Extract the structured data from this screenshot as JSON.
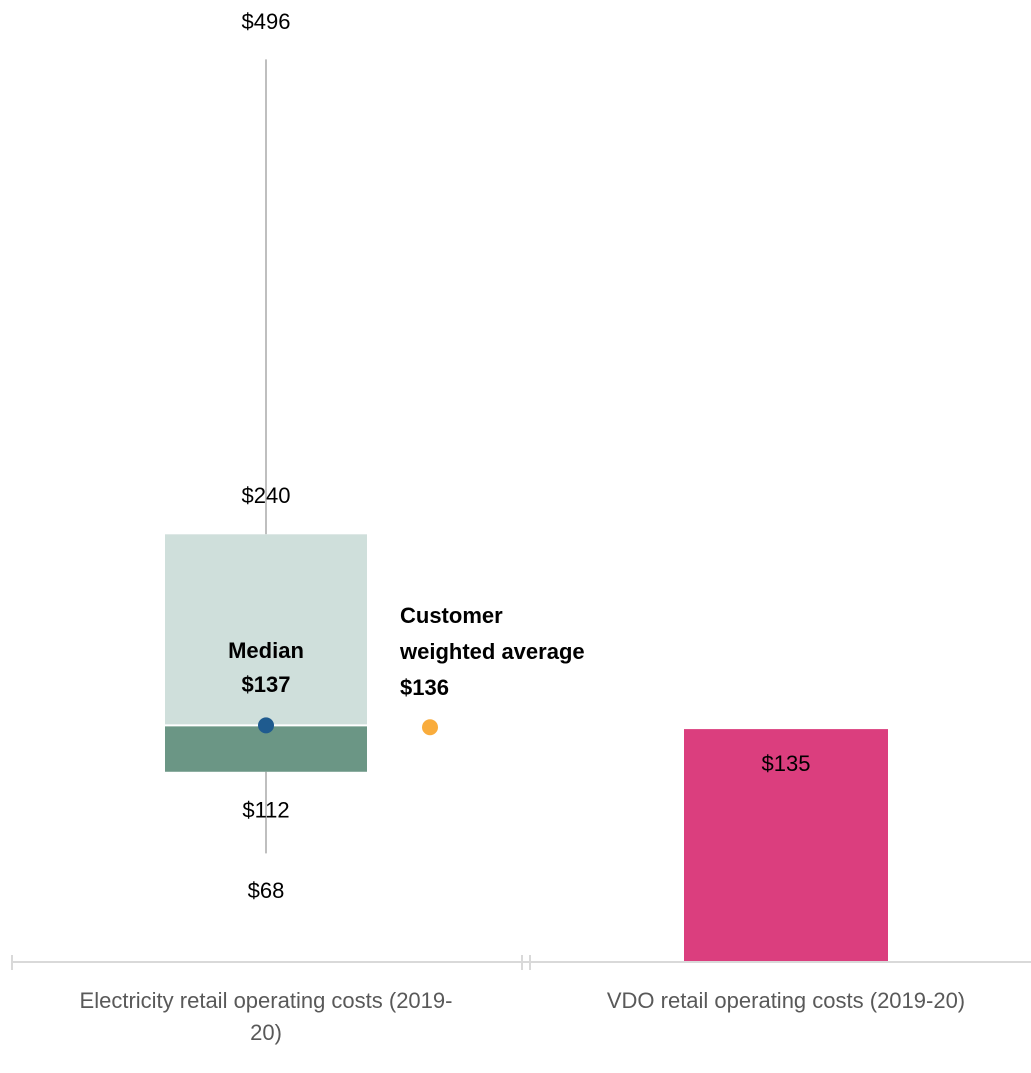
{
  "chart_data": {
    "type": "box",
    "categories": [
      "Electricity retail operating costs (2019-20)",
      "VDO retail operating costs (2019-20)"
    ],
    "ylim": [
      10,
      528
    ],
    "box": {
      "min": 68,
      "q1": 112,
      "median": 137,
      "q3": 240,
      "max": 496,
      "value_labels": {
        "min": "$68",
        "q1": "$112",
        "median": "$137",
        "q3": "$240",
        "max": "$496"
      },
      "median_label": "Median",
      "lower_color": "#6b9685",
      "upper_color": "#cfdfdb",
      "whisker_color": "#bfbfbf",
      "median_color": "#1f5b8f"
    },
    "average": {
      "label": [
        "Customer",
        "weighted average"
      ],
      "value": 136,
      "value_label": "$136",
      "color": "#f9ac3c",
      "label_color": "#c55a11"
    },
    "bar": {
      "value": 135,
      "value_label": "$135",
      "color": "#db3e7e"
    }
  }
}
